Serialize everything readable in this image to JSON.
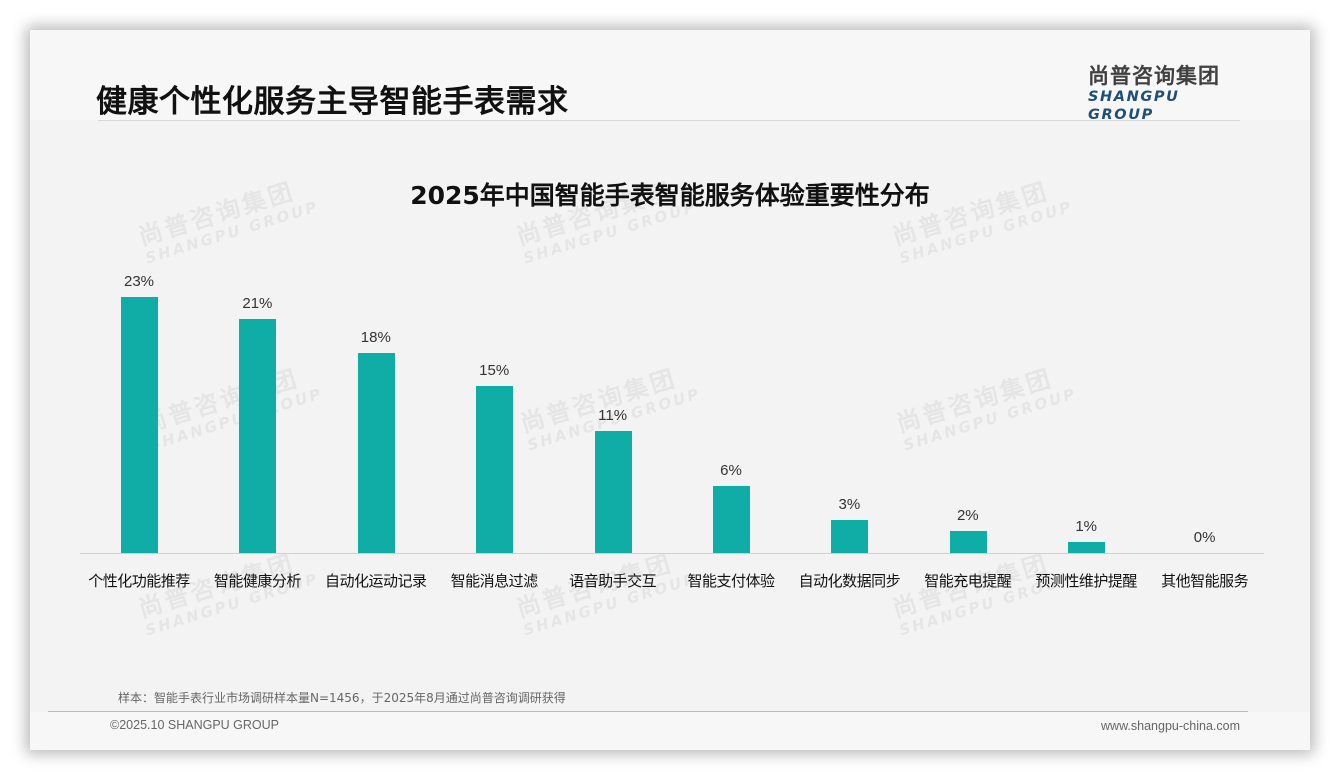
{
  "header": {
    "title": "健康个性化服务主导智能手表需求",
    "logo_cn": "尚普咨询集团",
    "logo_en": "SHANGPU GROUP"
  },
  "watermark": {
    "cn": "尚普咨询集团",
    "en": "SHANGPU GROUP"
  },
  "colors": {
    "bar": "#0fada5",
    "background": "#f3f3f3",
    "logo_en": "#1f4e79"
  },
  "chart_data": {
    "type": "bar",
    "title": "2025年中国智能手表智能服务体验重要性分布",
    "xlabel": "",
    "ylabel": "",
    "ylim": [
      0,
      25
    ],
    "grid": false,
    "legend": null,
    "unit": "%",
    "categories": [
      "个性化功能推荐",
      "智能健康分析",
      "自动化运动记录",
      "智能消息过滤",
      "语音助手交互",
      "智能支付体验",
      "自动化数据同步",
      "智能充电提醒",
      "预测性维护提醒",
      "其他智能服务"
    ],
    "values": [
      23,
      21,
      18,
      15,
      11,
      6,
      3,
      2,
      1,
      0
    ],
    "labels": [
      "23%",
      "21%",
      "18%",
      "15%",
      "11%",
      "6%",
      "3%",
      "2%",
      "1%",
      "0%"
    ]
  },
  "footer": {
    "sample_note": "样本：智能手表行业市场调研样本量N=1456，于2025年8月通过尚普咨询调研获得",
    "copyright": "©2025.10 SHANGPU GROUP",
    "website": "www.shangpu-china.com"
  }
}
